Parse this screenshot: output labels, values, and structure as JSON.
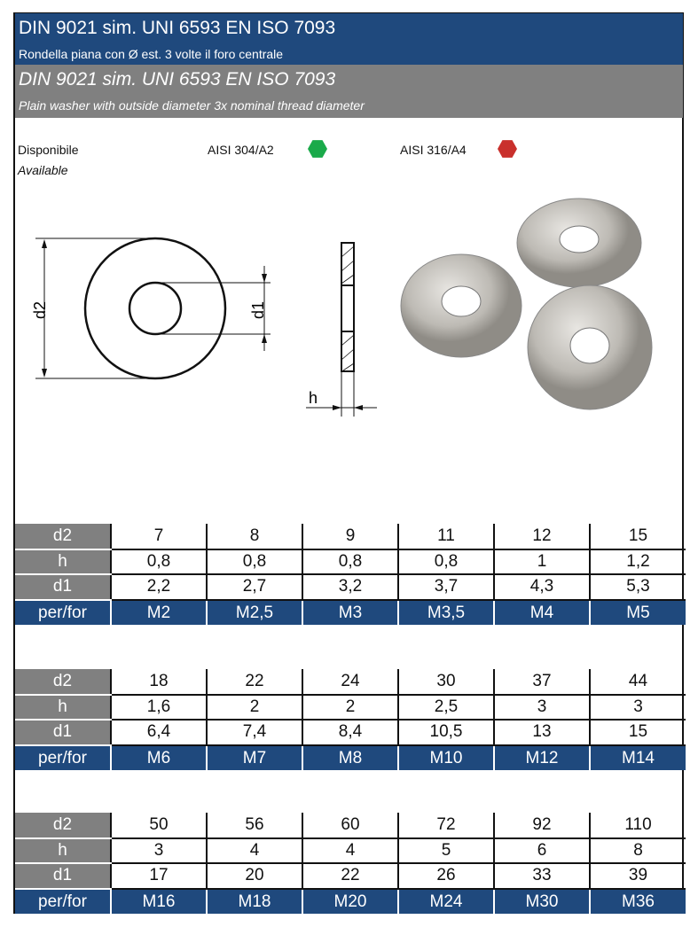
{
  "header": {
    "title_it": "DIN 9021 sim. UNI 6593 EN ISO 7093",
    "subtitle_it": "Rondella piana con Ø est. 3 volte il foro centrale",
    "title_en": "DIN 9021 sim. UNI 6593 EN ISO 7093",
    "subtitle_en": "Plain washer with outside diameter 3x nominal thread diameter"
  },
  "availability": {
    "label_it": "Disponibile",
    "label_en": "Available",
    "materials": [
      {
        "name": "AISI 304/A2",
        "color": "#1aaa4a"
      },
      {
        "name": "AISI 316/A4",
        "color": "#c9302c"
      }
    ]
  },
  "drawing": {
    "d2": "d2",
    "d1": "d1",
    "h": "h"
  },
  "row_labels": [
    "d2",
    "h",
    "d1",
    "per/for"
  ],
  "tables": [
    {
      "d2": [
        "7",
        "8",
        "9",
        "11",
        "12",
        "15"
      ],
      "h": [
        "0,8",
        "0,8",
        "0,8",
        "0,8",
        "1",
        "1,2"
      ],
      "d1": [
        "2,2",
        "2,7",
        "3,2",
        "3,7",
        "4,3",
        "5,3"
      ],
      "for": [
        "M2",
        "M2,5",
        "M3",
        "M3,5",
        "M4",
        "M5"
      ]
    },
    {
      "d2": [
        "18",
        "22",
        "24",
        "30",
        "37",
        "44"
      ],
      "h": [
        "1,6",
        "2",
        "2",
        "2,5",
        "3",
        "3"
      ],
      "d1": [
        "6,4",
        "7,4",
        "8,4",
        "10,5",
        "13",
        "15"
      ],
      "for": [
        "M6",
        "M7",
        "M8",
        "M10",
        "M12",
        "M14"
      ]
    },
    {
      "d2": [
        "50",
        "56",
        "60",
        "72",
        "92",
        "110"
      ],
      "h": [
        "3",
        "4",
        "4",
        "5",
        "6",
        "8"
      ],
      "d1": [
        "17",
        "20",
        "22",
        "26",
        "33",
        "39"
      ],
      "for": [
        "M16",
        "M18",
        "M20",
        "M24",
        "M30",
        "M36"
      ]
    }
  ],
  "colors": {
    "blue": "#1f497d",
    "gray": "#808080"
  }
}
